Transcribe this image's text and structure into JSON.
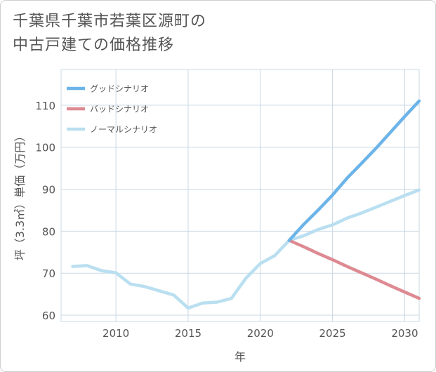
{
  "title_lines": [
    "千葉県千葉市若葉区源町の",
    "中古戸建ての価格推移"
  ],
  "colors": {
    "good": "#6cb4e8",
    "bad": "#de8a92",
    "normal": "#b9dff0",
    "grid": "#c9d8e4",
    "text": "#555555"
  },
  "chart_data": {
    "type": "line",
    "title": "千葉県千葉市若葉区源町の中古戸建ての価格推移",
    "xlabel": "年",
    "ylabel": "坪（3.3㎡）単価（万円）",
    "xlim": [
      2006.2,
      2031
    ],
    "ylim": [
      58.5,
      118.5
    ],
    "xticks": [
      2010,
      2015,
      2020,
      2025,
      2030
    ],
    "yticks": [
      60,
      70,
      80,
      90,
      100,
      110
    ],
    "grid": true,
    "legend_position": "top-left",
    "series": [
      {
        "name": "グッドシナリオ",
        "color_key": "good",
        "x": [
          2022,
          2023,
          2024,
          2025,
          2026,
          2027,
          2028,
          2029,
          2030,
          2031
        ],
        "y": [
          77.8,
          81.6,
          85.0,
          88.6,
          92.6,
          96.1,
          99.7,
          103.5,
          107.3,
          111.0
        ]
      },
      {
        "name": "バッドシナリオ",
        "color_key": "bad",
        "x": [
          2022,
          2023,
          2024,
          2025,
          2026,
          2027,
          2028,
          2029,
          2030,
          2031
        ],
        "y": [
          77.8,
          76.3,
          74.7,
          73.2,
          71.6,
          70.1,
          68.6,
          67.0,
          65.5,
          64.0
        ]
      },
      {
        "name": "ノーマルシナリオ",
        "color_key": "normal",
        "x": [
          2007,
          2008,
          2009,
          2010,
          2011,
          2012,
          2013,
          2014,
          2015,
          2016,
          2017,
          2018,
          2019,
          2020,
          2021,
          2022,
          2023,
          2024,
          2025,
          2026,
          2027,
          2028,
          2029,
          2030,
          2031
        ],
        "y": [
          71.6,
          71.8,
          70.6,
          70.1,
          67.4,
          66.8,
          65.8,
          64.8,
          61.7,
          62.9,
          63.1,
          64.0,
          68.8,
          72.3,
          74.2,
          77.8,
          78.9,
          80.4,
          81.5,
          83.1,
          84.3,
          85.7,
          87.1,
          88.5,
          89.8
        ]
      }
    ]
  }
}
